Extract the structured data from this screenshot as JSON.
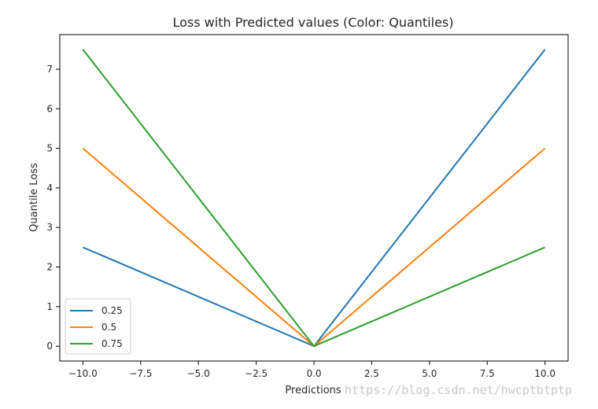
{
  "chart_data": {
    "type": "line",
    "title": "Loss with Predicted values (Color: Quantiles)",
    "xlabel": "Predictions",
    "ylabel": "Quantile Loss",
    "xlim": [
      -11,
      11
    ],
    "ylim": [
      -0.375,
      7.875
    ],
    "xticks": [
      -10.0,
      -7.5,
      -5.0,
      -2.5,
      0.0,
      2.5,
      5.0,
      7.5,
      10.0
    ],
    "xtick_labels": [
      "−10.0",
      "−7.5",
      "−5.0",
      "−2.5",
      "0.0",
      "2.5",
      "5.0",
      "7.5",
      "10.0"
    ],
    "yticks": [
      0,
      1,
      2,
      3,
      4,
      5,
      6,
      7
    ],
    "ytick_labels": [
      "0",
      "1",
      "2",
      "3",
      "4",
      "5",
      "6",
      "7"
    ],
    "grid": false,
    "legend_position": "lower-left",
    "x": [
      -10,
      0,
      10
    ],
    "series": [
      {
        "name": "0.25",
        "color": "#1f77b4",
        "values": [
          2.5,
          0,
          7.5
        ]
      },
      {
        "name": "0.5",
        "color": "#ff7f0e",
        "values": [
          5.0,
          0,
          5.0
        ]
      },
      {
        "name": "0.75",
        "color": "#2ca02c",
        "values": [
          7.5,
          0,
          2.5
        ]
      }
    ]
  },
  "watermark": "https://blog.csdn.net/hwcptbtptp"
}
